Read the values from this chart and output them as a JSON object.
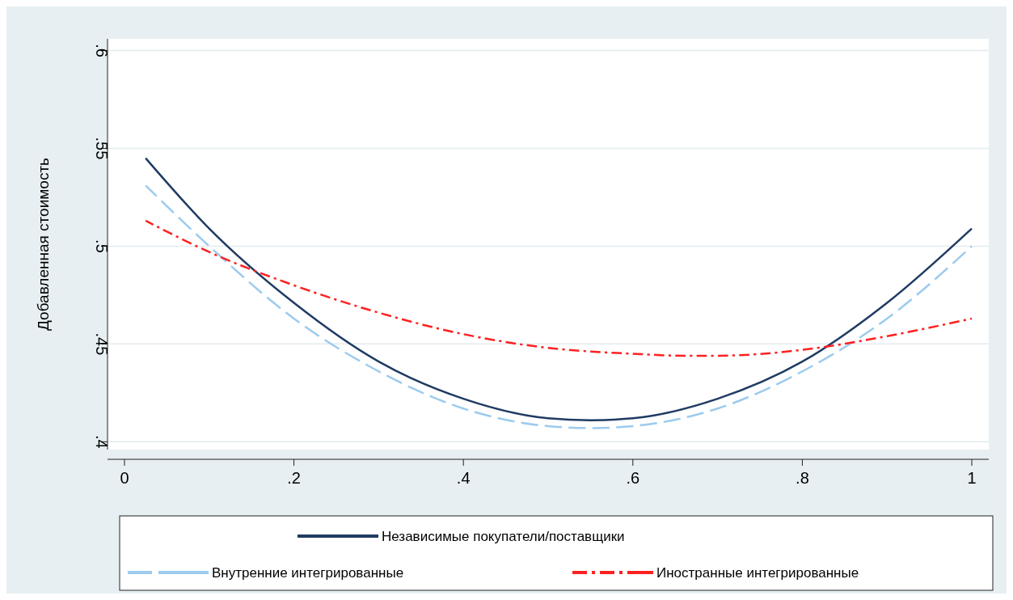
{
  "chart_data": {
    "type": "line",
    "ylabel": "Добавленная стоимость",
    "xlim": [
      -0.02,
      1.02
    ],
    "ylim": [
      0.396,
      0.606
    ],
    "xticks": [
      0,
      {
        "value": 0.2,
        "label": ".2"
      },
      {
        "value": 0.4,
        "label": ".4"
      },
      {
        "value": 0.6,
        "label": ".6"
      },
      {
        "value": 0.8,
        "label": ".8"
      },
      1
    ],
    "yticks": [
      {
        "value": 0.4,
        "label": ".4"
      },
      {
        "value": 0.45,
        "label": ".45"
      },
      {
        "value": 0.5,
        "label": ".5"
      },
      {
        "value": 0.55,
        "label": ".55"
      },
      {
        "value": 0.6,
        "label": ".6"
      }
    ],
    "grid": "y",
    "legend": "bottom",
    "series": [
      {
        "name": "Независимые покупатели/поставщики",
        "color": "#1f3b63",
        "line_style": "solid",
        "x": [
          0.025,
          0.1,
          0.2,
          0.3,
          0.4,
          0.5,
          0.55,
          0.6,
          0.7,
          0.8,
          0.9,
          1
        ],
        "values": [
          0.545,
          0.509,
          0.471,
          0.441,
          0.422,
          0.412,
          0.411,
          0.412,
          0.422,
          0.441,
          0.471,
          0.509
        ]
      },
      {
        "name": "Внутренние интегрированные",
        "color": "#9ccbee",
        "line_style": "dashed",
        "x": [
          0.025,
          0.1,
          0.2,
          0.3,
          0.4,
          0.5,
          0.55,
          0.6,
          0.7,
          0.8,
          0.9,
          1
        ],
        "values": [
          0.531,
          0.5,
          0.463,
          0.436,
          0.417,
          0.408,
          0.407,
          0.408,
          0.417,
          0.436,
          0.463,
          0.5
        ]
      },
      {
        "name": "Иностранные интегрированные",
        "color": "#ff2020",
        "line_style": "dashdot",
        "x": [
          0.025,
          0.1,
          0.2,
          0.3,
          0.4,
          0.5,
          0.6,
          0.66,
          0.7,
          0.8,
          0.9,
          1
        ],
        "values": [
          0.513,
          0.497,
          0.48,
          0.466,
          0.455,
          0.448,
          0.445,
          0.444,
          0.444,
          0.447,
          0.454,
          0.463
        ]
      }
    ]
  }
}
